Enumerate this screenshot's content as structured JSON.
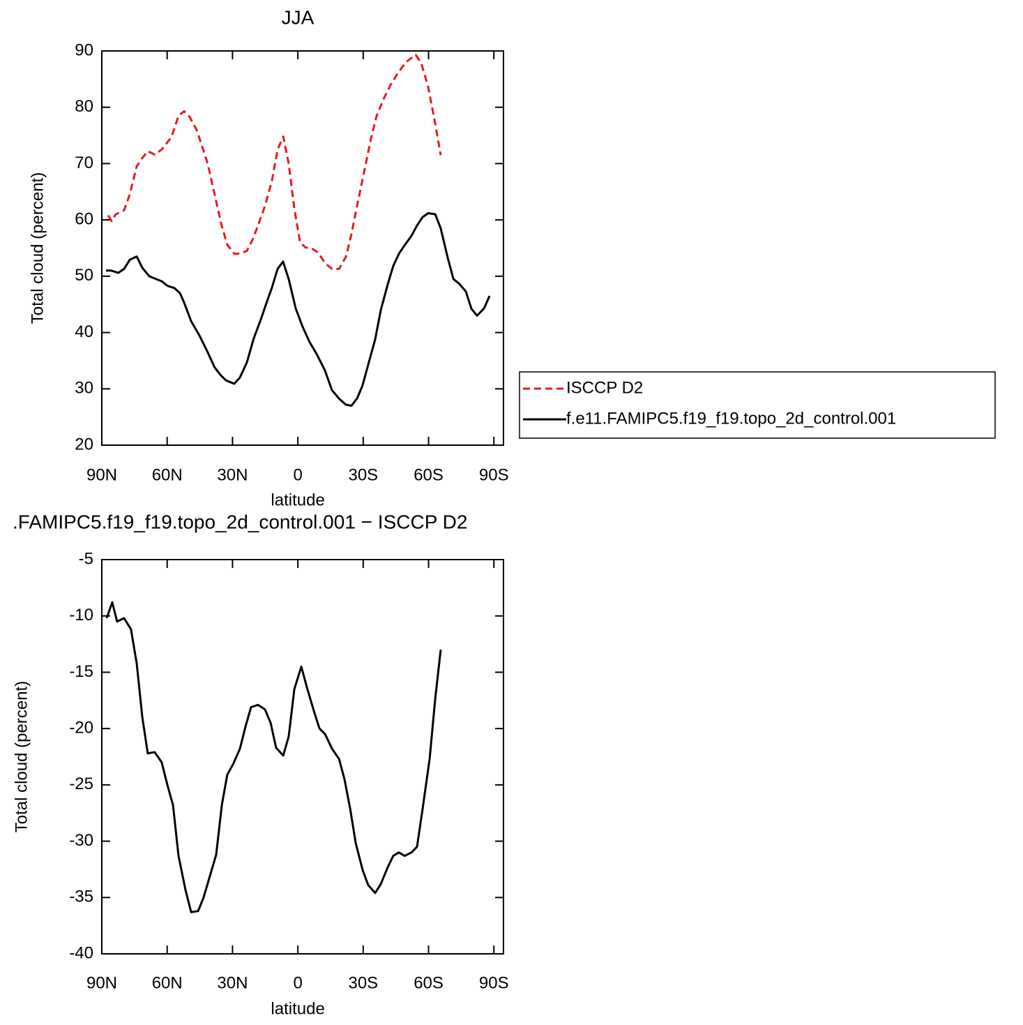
{
  "chart_data": [
    {
      "type": "line",
      "title": "JJA",
      "xlabel": "latitude",
      "ylabel": "Total cloud (percent)",
      "xlim": [
        90,
        -94.4
      ],
      "xticks": [
        {
          "value": 90,
          "label": "90N"
        },
        {
          "value": 60,
          "label": "60N"
        },
        {
          "value": 30,
          "label": "30N"
        },
        0,
        {
          "value": -30,
          "label": "30S"
        },
        {
          "value": -60,
          "label": "60S"
        },
        {
          "value": -90,
          "label": "90S"
        }
      ],
      "ylim": [
        20,
        90
      ],
      "yticks": [
        20,
        30,
        40,
        50,
        60,
        70,
        80,
        90
      ],
      "legend": "right",
      "series": [
        {
          "name": "ISCCP D2",
          "color": "#e41a1c",
          "linestyle": "dashed",
          "x": [
            87.1,
            85.5,
            83.6,
            79.8,
            77.2,
            74.0,
            71.4,
            68.9,
            65.7,
            62.5,
            58.0,
            54.8,
            52.2,
            49.7,
            46.5,
            43.9,
            41.4,
            38.2,
            35.0,
            32.4,
            29.2,
            26.6,
            23.4,
            20.8,
            18.3,
            15.1,
            11.9,
            9.3,
            6.7,
            4.2,
            1.6,
            -1.0,
            -3.5,
            -6.1,
            -9.3,
            -12.5,
            -15.7,
            -18.9,
            -22.1,
            -24.6,
            -27.2,
            -30.4,
            -33.6,
            -36.2,
            -39.4,
            -42.6,
            -45.8,
            -49.6,
            -54.1,
            -56.7,
            -59.9,
            -63.1,
            -65.6
          ],
          "values": [
            60.8,
            59.8,
            61,
            61.7,
            64.5,
            69.5,
            71,
            72.2,
            71.6,
            72.5,
            74.7,
            78.5,
            79.3,
            78.3,
            76,
            73,
            70,
            64.5,
            59,
            55.6,
            54,
            54,
            54.5,
            56.5,
            59,
            62.5,
            67,
            72.5,
            74.8,
            70,
            62,
            56,
            55.1,
            55,
            54.2,
            52.3,
            51.3,
            51.3,
            53.5,
            57.5,
            62.5,
            68.5,
            74.5,
            78.5,
            81.5,
            84,
            86,
            88,
            89.3,
            87.8,
            83.5,
            77,
            71.5
          ]
        },
        {
          "name": "f.e11.FAMIPC5.f19_f19.topo_2d_control.001",
          "color": "#000000",
          "linestyle": "solid",
          "x": [
            88.1,
            85.6,
            82.4,
            79.8,
            77.2,
            74.0,
            71.4,
            68.2,
            65.7,
            62.5,
            59.9,
            56.7,
            54.1,
            52.2,
            49.0,
            45.2,
            41.4,
            38.2,
            35.6,
            33.0,
            29.2,
            26.6,
            23.4,
            20.2,
            17.0,
            15.1,
            11.9,
            9.3,
            6.8,
            4.2,
            1.0,
            -2.2,
            -5.4,
            -8.6,
            -12.4,
            -15.6,
            -18.8,
            -22.0,
            -24.6,
            -27.2,
            -29.7,
            -32.3,
            -35.5,
            -38.1,
            -41.3,
            -43.8,
            -46.4,
            -49.0,
            -52.2,
            -54.7,
            -57.3,
            -59.9,
            -63.1,
            -65.6,
            -68.8,
            -71.4,
            -74.0,
            -77.1,
            -79.7,
            -82.3,
            -85.5,
            -88.0
          ],
          "values": [
            51,
            51,
            50.6,
            51.3,
            52.9,
            53.5,
            51.5,
            50,
            49.6,
            49.1,
            48.3,
            47.9,
            47,
            45.3,
            42,
            39.5,
            36.5,
            33.8,
            32.5,
            31.5,
            30.9,
            32,
            34.7,
            39,
            42.3,
            44.5,
            48,
            51.3,
            52.6,
            49.5,
            44.3,
            41,
            38.3,
            36.2,
            33.3,
            29.8,
            28.3,
            27.2,
            27,
            28.3,
            30.6,
            34.3,
            38.8,
            44,
            48.6,
            51.8,
            54,
            55.5,
            57.2,
            59,
            60.5,
            61.2,
            61,
            58.5,
            53.3,
            49.5,
            48.7,
            47.3,
            44.2,
            43,
            44.3,
            46.5
          ]
        }
      ]
    },
    {
      "type": "line",
      "title": ".FAMIPC5.f19_f19.topo_2d_control.001 − ISCCP D2",
      "xlabel": "latitude",
      "ylabel": "Total cloud (percent)",
      "xlim": [
        90,
        -94.4
      ],
      "xticks": [
        {
          "value": 90,
          "label": "90N"
        },
        {
          "value": 60,
          "label": "60N"
        },
        {
          "value": 30,
          "label": "30N"
        },
        0,
        {
          "value": -30,
          "label": "30S"
        },
        {
          "value": -60,
          "label": "60S"
        },
        {
          "value": -90,
          "label": "90S"
        }
      ],
      "ylim": [
        -40,
        -5
      ],
      "yticks": [
        -40,
        -35,
        -30,
        -25,
        -20,
        -15,
        -10,
        -5
      ],
      "series": [
        {
          "color": "#000000",
          "linestyle": "solid",
          "x": [
            87.8,
            85.2,
            83.0,
            79.8,
            76.6,
            74.0,
            71.4,
            68.9,
            65.7,
            62.5,
            59.9,
            57.3,
            54.8,
            51.6,
            49.0,
            45.8,
            43.3,
            40.7,
            37.5,
            34.9,
            32.4,
            29.8,
            26.6,
            24.0,
            21.5,
            18.3,
            15.1,
            12.5,
            10.0,
            6.7,
            4.2,
            1.6,
            -1.6,
            -4.1,
            -7.3,
            -9.9,
            -12.5,
            -15.7,
            -18.9,
            -21.4,
            -24.0,
            -26.6,
            -29.8,
            -32.3,
            -35.5,
            -38.1,
            -41.3,
            -43.8,
            -46.4,
            -49.0,
            -52.2,
            -54.7,
            -57.3,
            -60.5,
            -63.1,
            -65.6
          ],
          "values": [
            -10.2,
            -8.8,
            -10.5,
            -10.2,
            -11.2,
            -14.2,
            -19,
            -22.2,
            -22.1,
            -23,
            -25,
            -26.8,
            -31.3,
            -34.3,
            -36.3,
            -36.2,
            -35,
            -33.3,
            -31.2,
            -26.8,
            -24.1,
            -23.2,
            -21.8,
            -19.8,
            -18.1,
            -17.9,
            -18.3,
            -19.5,
            -21.7,
            -22.4,
            -20.7,
            -16.5,
            -14.5,
            -16.3,
            -18.4,
            -20,
            -20.5,
            -21.8,
            -22.7,
            -24.5,
            -27.1,
            -30.2,
            -32.6,
            -33.9,
            -34.6,
            -33.8,
            -32.3,
            -31.3,
            -31,
            -31.3,
            -31,
            -30.5,
            -27.1,
            -22.7,
            -17.3,
            -13
          ]
        }
      ]
    }
  ]
}
